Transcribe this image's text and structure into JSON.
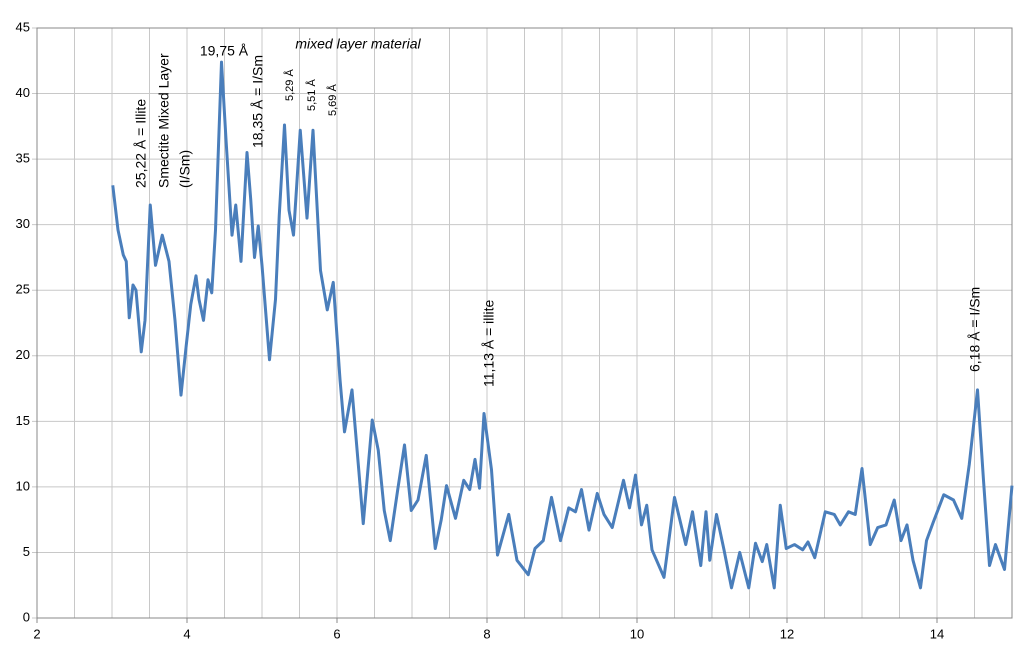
{
  "chart_data": {
    "type": "line",
    "x": [
      3.01,
      3.08,
      3.15,
      3.19,
      3.23,
      3.28,
      3.32,
      3.39,
      3.44,
      3.51,
      3.58,
      3.67,
      3.76,
      3.84,
      3.92,
      3.99,
      4.05,
      4.12,
      4.16,
      4.22,
      4.28,
      4.33,
      4.38,
      4.46,
      4.52,
      4.6,
      4.65,
      4.72,
      4.8,
      4.85,
      4.9,
      4.95,
      5.0,
      5.1,
      5.18,
      5.23,
      5.3,
      5.36,
      5.42,
      5.51,
      5.6,
      5.68,
      5.78,
      5.87,
      5.95,
      6.04,
      6.1,
      6.2,
      6.29,
      6.35,
      6.47,
      6.55,
      6.63,
      6.71,
      6.81,
      6.9,
      6.99,
      7.08,
      7.19,
      7.31,
      7.39,
      7.46,
      7.58,
      7.69,
      7.77,
      7.84,
      7.9,
      7.96,
      8.06,
      8.14,
      8.29,
      8.4,
      8.55,
      8.64,
      8.75,
      8.86,
      8.98,
      9.09,
      9.18,
      9.26,
      9.36,
      9.47,
      9.56,
      9.67,
      9.82,
      9.9,
      9.98,
      10.06,
      10.13,
      10.2,
      10.36,
      10.5,
      10.65,
      10.74,
      10.85,
      10.92,
      10.97,
      11.06,
      11.16,
      11.26,
      11.37,
      11.49,
      11.58,
      11.67,
      11.73,
      11.83,
      11.91,
      11.99,
      12.1,
      12.21,
      12.28,
      12.37,
      12.51,
      12.63,
      12.71,
      12.82,
      12.91,
      13.0,
      13.11,
      13.21,
      13.32,
      13.43,
      13.52,
      13.6,
      13.68,
      13.78,
      13.86,
      13.95,
      14.09,
      14.22,
      14.33,
      14.43,
      14.54,
      14.62,
      14.7,
      14.78,
      14.9,
      15.0
    ],
    "series": [
      {
        "color": "#4a7ebb",
        "values": [
          33,
          29.6,
          27.7,
          27.2,
          22.9,
          25.4,
          25,
          20.3,
          22.7,
          31.5,
          26.9,
          29.2,
          27.2,
          22.7,
          17,
          20.8,
          23.9,
          26.1,
          24.3,
          22.7,
          25.8,
          24.8,
          29.6,
          42.4,
          36.5,
          29.2,
          31.5,
          27.2,
          35.5,
          31.9,
          27.5,
          29.9,
          26.9,
          19.7,
          24.3,
          30.7,
          37.6,
          31.1,
          29.2,
          37.2,
          30.5,
          37.2,
          26.5,
          23.5,
          25.6,
          18.2,
          14.2,
          17.4,
          11.3,
          7.2,
          15.1,
          12.8,
          8.2,
          5.9,
          9.8,
          13.2,
          8.2,
          9,
          12.4,
          5.3,
          7.5,
          10.1,
          7.6,
          10.5,
          9.8,
          12.1,
          9.9,
          15.6,
          11.3,
          4.8,
          7.9,
          4.4,
          3.3,
          5.3,
          5.9,
          9.2,
          5.9,
          8.4,
          8.1,
          9.8,
          6.7,
          9.5,
          7.9,
          6.9,
          10.5,
          8.4,
          10.9,
          7.1,
          8.6,
          5.2,
          3.1,
          9.2,
          5.6,
          8.1,
          4,
          8.1,
          4.4,
          7.9,
          5.2,
          2.3,
          5,
          2.3,
          5.7,
          4.3,
          5.6,
          2.3,
          8.6,
          5.3,
          5.6,
          5.2,
          5.8,
          4.6,
          8.1,
          7.9,
          7.1,
          8.1,
          7.9,
          11.4,
          5.6,
          6.9,
          7.1,
          9,
          5.9,
          7.1,
          4.4,
          2.3,
          5.9,
          7.3,
          9.4,
          9,
          7.6,
          11.7,
          17.4,
          10.5,
          4,
          5.6,
          3.7,
          10.1
        ]
      }
    ],
    "xlim": [
      2,
      15
    ],
    "xticks": [
      2,
      4,
      6,
      8,
      10,
      12,
      14
    ],
    "xgrid": [
      2,
      2.5,
      3,
      3.5,
      4,
      4.5,
      5,
      5.5,
      6,
      6.5,
      7,
      7.5,
      8,
      8.5,
      9,
      9.5,
      10,
      10.5,
      11,
      11.5,
      12,
      12.5,
      13,
      13.5,
      14,
      14.5,
      15
    ],
    "ylim": [
      0,
      45
    ],
    "yticks": [
      0,
      5,
      10,
      15,
      20,
      25,
      30,
      35,
      40,
      45
    ],
    "grid": true,
    "annotations": [
      "25,22 Å = Illite",
      "Smectite Mixed Layer",
      "(I/Sm)",
      "19,75 Å",
      "18,35 Å = I/Sm",
      "mixed layer material",
      "5,29 Å",
      "5,51 Å",
      "5,69 Å",
      "11,13 Å = illite",
      "6,18 Å = I/Sm"
    ]
  }
}
